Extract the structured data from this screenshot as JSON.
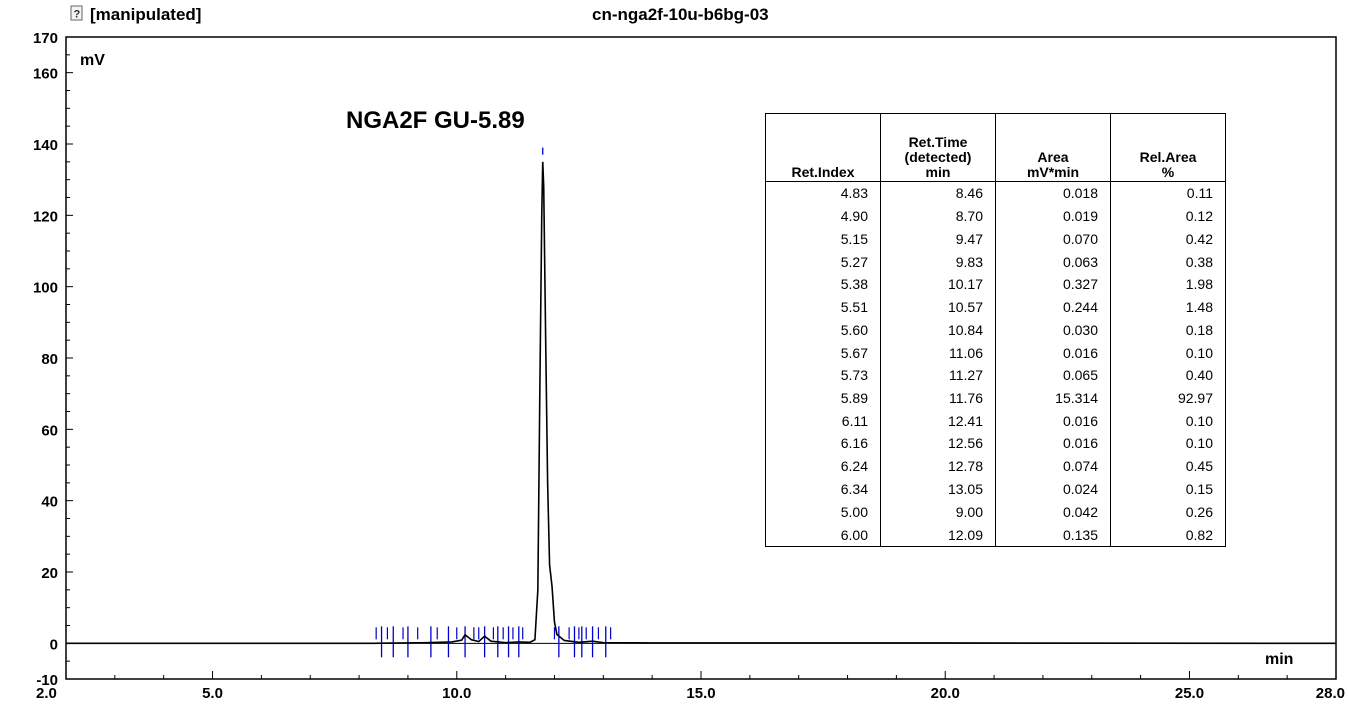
{
  "header": {
    "status": "[manipulated]",
    "sample_name": "cn-nga2f-10u-b6bg-03",
    "status_icon": "question-mark-icon"
  },
  "chart_data": {
    "type": "line",
    "ylabel": "mV",
    "xlabel": "min",
    "xlim": [
      2.0,
      28.0
    ],
    "ylim": [
      -10,
      170
    ],
    "x_ticks": [
      "2.0",
      "5.0",
      "10.0",
      "15.0",
      "20.0",
      "25.0",
      "28.0"
    ],
    "y_ticks": [
      "170",
      "160",
      "140",
      "120",
      "100",
      "80",
      "60",
      "40",
      "20",
      "0",
      "-10"
    ],
    "annotation": "NGA2F GU-5.89",
    "line_color": "#000000",
    "marker_color": "#0000cc",
    "trace_points": [
      [
        2.0,
        0
      ],
      [
        8.3,
        0
      ],
      [
        9.4,
        0.2
      ],
      [
        9.9,
        0.4
      ],
      [
        10.1,
        0.9
      ],
      [
        10.17,
        2.4
      ],
      [
        10.3,
        1.0
      ],
      [
        10.45,
        0.5
      ],
      [
        10.57,
        2.0
      ],
      [
        10.7,
        0.6
      ],
      [
        11.0,
        0.2
      ],
      [
        11.27,
        0.4
      ],
      [
        11.5,
        0.3
      ],
      [
        11.6,
        1.0
      ],
      [
        11.66,
        15
      ],
      [
        11.7,
        70
      ],
      [
        11.74,
        120
      ],
      [
        11.76,
        135
      ],
      [
        11.78,
        128
      ],
      [
        11.82,
        85
      ],
      [
        11.86,
        45
      ],
      [
        11.9,
        22
      ],
      [
        11.95,
        16
      ],
      [
        12.0,
        6
      ],
      [
        12.05,
        2.5
      ],
      [
        12.2,
        0.8
      ],
      [
        12.5,
        0.3
      ],
      [
        12.78,
        0.6
      ],
      [
        13.0,
        0.2
      ],
      [
        14.0,
        0.1
      ],
      [
        20.0,
        0.1
      ],
      [
        28.0,
        0
      ]
    ],
    "peak_markers": [
      8.46,
      8.7,
      9.47,
      9.83,
      10.17,
      10.57,
      10.84,
      11.06,
      11.27,
      11.76,
      12.41,
      12.56,
      12.78,
      13.05,
      9.0,
      12.09
    ],
    "peak_table": {
      "headers": [
        [
          "Ret.Index"
        ],
        [
          "Ret.Time",
          "(detected)",
          "min"
        ],
        [
          "Area",
          "mV*min"
        ],
        [
          "Rel.Area",
          "%"
        ]
      ],
      "rows": [
        [
          "4.83",
          "8.46",
          "0.018",
          "0.11"
        ],
        [
          "4.90",
          "8.70",
          "0.019",
          "0.12"
        ],
        [
          "5.15",
          "9.47",
          "0.070",
          "0.42"
        ],
        [
          "5.27",
          "9.83",
          "0.063",
          "0.38"
        ],
        [
          "5.38",
          "10.17",
          "0.327",
          "1.98"
        ],
        [
          "5.51",
          "10.57",
          "0.244",
          "1.48"
        ],
        [
          "5.60",
          "10.84",
          "0.030",
          "0.18"
        ],
        [
          "5.67",
          "11.06",
          "0.016",
          "0.10"
        ],
        [
          "5.73",
          "11.27",
          "0.065",
          "0.40"
        ],
        [
          "5.89",
          "11.76",
          "15.314",
          "92.97"
        ],
        [
          "6.11",
          "12.41",
          "0.016",
          "0.10"
        ],
        [
          "6.16",
          "12.56",
          "0.016",
          "0.10"
        ],
        [
          "6.24",
          "12.78",
          "0.074",
          "0.45"
        ],
        [
          "6.34",
          "13.05",
          "0.024",
          "0.15"
        ],
        [
          "5.00",
          "9.00",
          "0.042",
          "0.26"
        ],
        [
          "6.00",
          "12.09",
          "0.135",
          "0.82"
        ]
      ]
    }
  }
}
